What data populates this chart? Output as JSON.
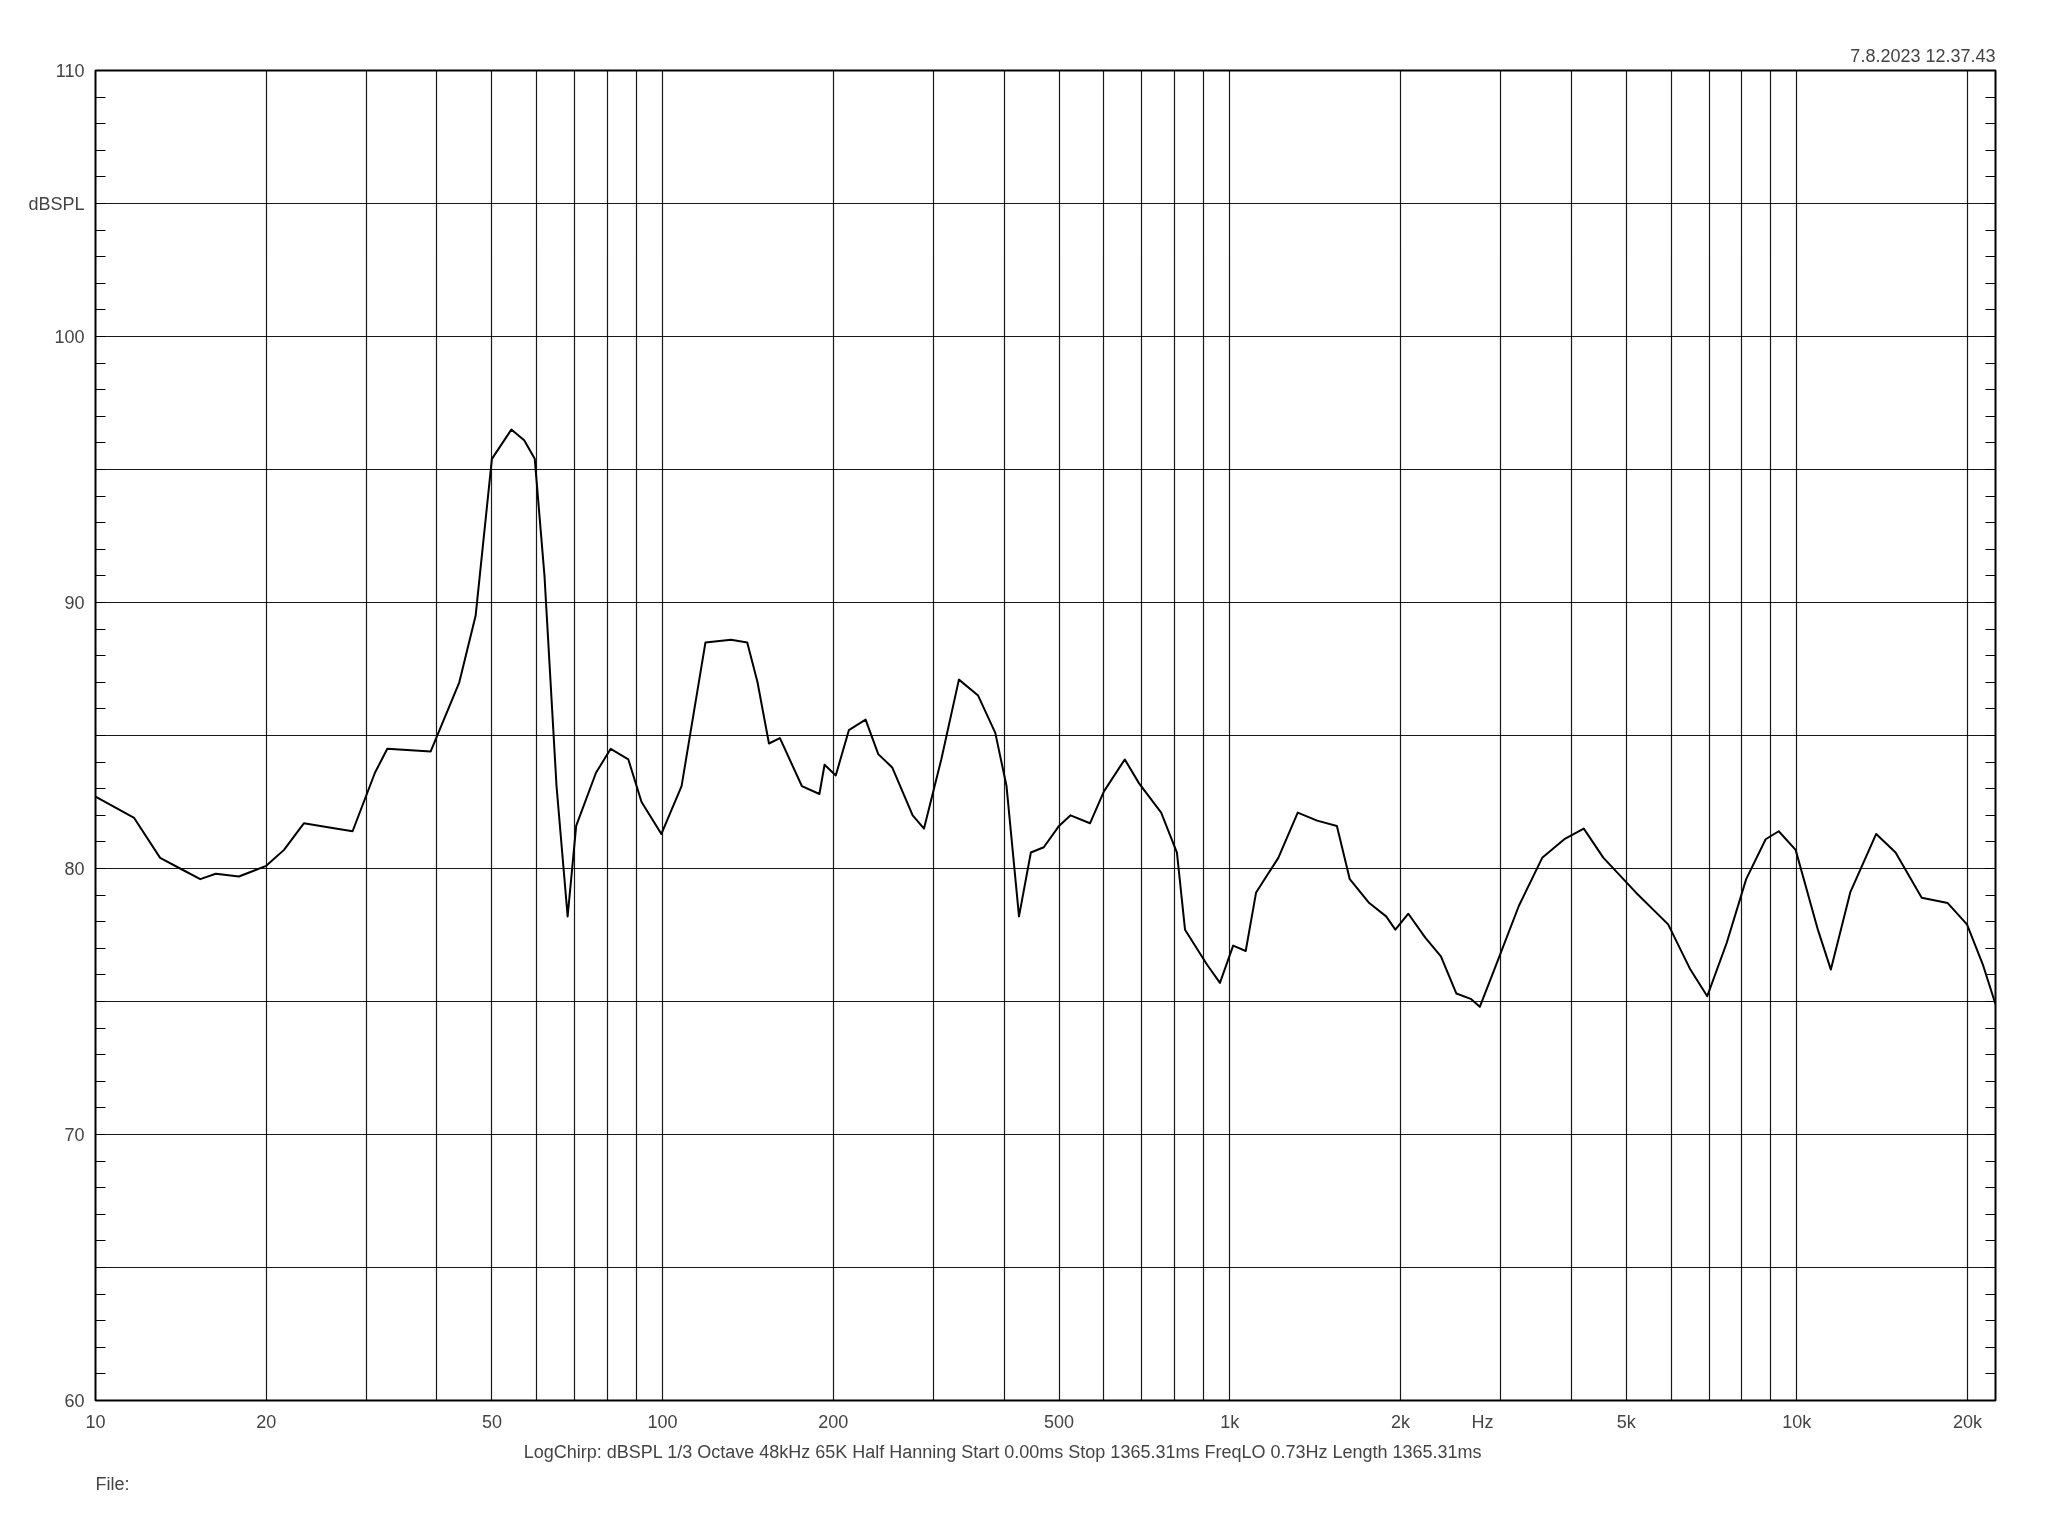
{
  "chart_data": {
    "type": "line",
    "xlabel": "Hz",
    "ylabel": "dBSPL",
    "annotations": [
      "7.8.2023 12.37.43",
      "LogChirp:  dBSPL   1/3 Octave   48kHz   65K   Half Hanning   Start 0.00ms   Stop 1365.31ms   FreqLO 0.73Hz   Length 1365.31ms",
      "File:"
    ],
    "log": "x",
    "grid": true,
    "marker": "none",
    "line_style": "solid",
    "xlim": [
      10,
      22400
    ],
    "ylim": [
      60,
      110
    ],
    "xticks": [
      10,
      20,
      {
        "value": 30,
        "label": null
      },
      {
        "value": 40,
        "label": null
      },
      50,
      {
        "value": 60,
        "label": null
      },
      {
        "value": 70,
        "label": null
      },
      {
        "value": 80,
        "label": null
      },
      {
        "value": 90,
        "label": null
      },
      100,
      200,
      {
        "value": 300,
        "label": null
      },
      {
        "value": 400,
        "label": null
      },
      500,
      {
        "value": 600,
        "label": null
      },
      {
        "value": 700,
        "label": null
      },
      {
        "value": 800,
        "label": null
      },
      {
        "value": 900,
        "label": null
      },
      {
        "value": 1000,
        "label": "1k"
      },
      {
        "value": 2000,
        "label": "2k"
      },
      {
        "value": 3000,
        "label": null
      },
      {
        "value": 4000,
        "label": null
      },
      {
        "value": 5000,
        "label": "5k"
      },
      {
        "value": 6000,
        "label": null
      },
      {
        "value": 7000,
        "label": null
      },
      {
        "value": 8000,
        "label": null
      },
      {
        "value": 9000,
        "label": null
      },
      {
        "value": 10000,
        "label": "10k"
      },
      {
        "value": 20000,
        "label": "20k"
      }
    ],
    "yticks": [
      60,
      {
        "value": 65,
        "label": null
      },
      70,
      {
        "value": 75,
        "label": null
      },
      80,
      {
        "value": 85,
        "label": null
      },
      90,
      {
        "value": 95,
        "label": null
      },
      100,
      {
        "value": 105,
        "label": null
      },
      110
    ],
    "series": [
      {
        "color": "#000000",
        "x": [
          10,
          11.7,
          13.0,
          14.1,
          15.3,
          16.3,
          17.9,
          20,
          21.5,
          23.3,
          26.5,
          28.4,
          31.1,
          32.7,
          39,
          43.8,
          46.8,
          50,
          54.1,
          57,
          59.5,
          61.9,
          65,
          68,
          70.4,
          76.3,
          81,
          87,
          91.8,
          99.5,
          108,
          119,
          132,
          141,
          147,
          154,
          161,
          176,
          189,
          193,
          202,
          213,
          228,
          240,
          254,
          276,
          289,
          310,
          333,
          360,
          386,
          404,
          425,
          446,
          470,
          500,
          524,
          567,
          600,
          653,
          692,
          757,
          807,
          834,
          911,
          961,
          1014,
          1067,
          1113,
          1218,
          1318,
          1426,
          1545,
          1628,
          1762,
          1887,
          1959,
          2065,
          2212,
          2357,
          2510,
          2660,
          2760,
          2940,
          3235,
          3556,
          3890,
          4210,
          4560,
          5200,
          5930,
          6490,
          6950,
          7520,
          8140,
          8810,
          9290,
          9950,
          10890,
          11480,
          12420,
          13800,
          14930,
          16600,
          18450,
          19950,
          21270,
          22400
        ],
        "values": [
          82.7,
          81.9,
          80.4,
          80.0,
          79.6,
          79.8,
          79.7,
          80.1,
          80.7,
          81.7,
          81.5,
          81.4,
          83.6,
          84.5,
          84.4,
          87.0,
          89.5,
          95.4,
          96.5,
          96.1,
          95.4,
          91.0,
          83.1,
          78.2,
          81.6,
          83.6,
          84.5,
          84.1,
          82.5,
          81.3,
          83.1,
          88.5,
          88.6,
          88.5,
          87.0,
          84.7,
          84.9,
          83.1,
          82.8,
          83.9,
          83.5,
          85.2,
          85.6,
          84.3,
          83.8,
          82.0,
          81.5,
          84.1,
          87.1,
          86.5,
          85.1,
          83.1,
          78.2,
          80.6,
          80.8,
          81.6,
          82.0,
          81.7,
          82.9,
          84.1,
          83.2,
          82.1,
          80.6,
          77.7,
          76.4,
          75.7,
          77.1,
          76.9,
          79.1,
          80.4,
          82.1,
          81.8,
          81.6,
          79.6,
          78.7,
          78.2,
          77.7,
          78.3,
          77.4,
          76.7,
          75.3,
          75.1,
          74.8,
          76.3,
          78.6,
          80.4,
          81.1,
          81.5,
          80.4,
          79.1,
          77.9,
          76.2,
          75.2,
          77.2,
          79.6,
          81.1,
          81.4,
          80.7,
          77.7,
          76.2,
          79.1,
          81.3,
          80.6,
          78.9,
          78.7,
          77.9,
          76.4,
          74.9
        ]
      }
    ]
  }
}
